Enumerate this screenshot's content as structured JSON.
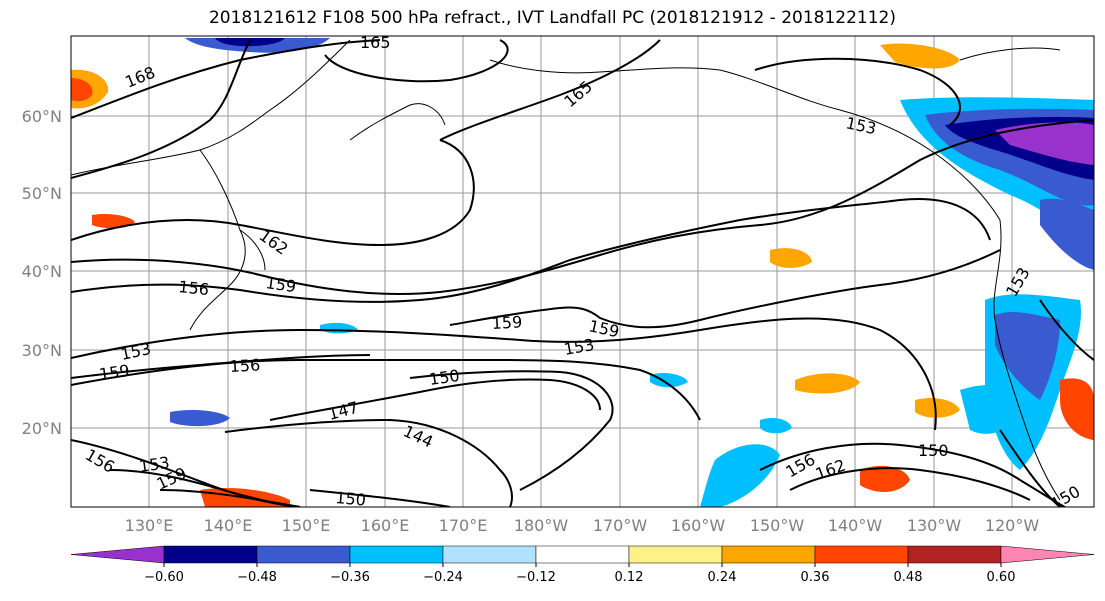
{
  "title": "2018121612 F108 500 hPa refract., IVT Landfall PC (2018121912 - 2018122112)",
  "map": {
    "lat_labels": [
      "60°N",
      "50°N",
      "40°N",
      "30°N",
      "20°N"
    ],
    "lon_labels": [
      "130°E",
      "140°E",
      "150°E",
      "160°E",
      "170°E",
      "180°W",
      "170°W",
      "160°W",
      "150°W",
      "140°W",
      "130°W",
      "120°W"
    ],
    "contour_labels": [
      {
        "text": "165",
        "id": "c165-top"
      },
      {
        "text": "168",
        "id": "c168"
      },
      {
        "text": "165",
        "id": "c165-mid"
      },
      {
        "text": "153",
        "id": "c153-ne"
      },
      {
        "text": "162",
        "id": "c162-w"
      },
      {
        "text": "159",
        "id": "c159-w"
      },
      {
        "text": "156",
        "id": "c156-w"
      },
      {
        "text": "159",
        "id": "c159-c"
      },
      {
        "text": "159",
        "id": "c159-c2"
      },
      {
        "text": "153",
        "id": "c153-w"
      },
      {
        "text": "153",
        "id": "c153-c"
      },
      {
        "text": "159",
        "id": "c159-sw"
      },
      {
        "text": "156",
        "id": "c156-c"
      },
      {
        "text": "150",
        "id": "c150-c"
      },
      {
        "text": "147",
        "id": "c147"
      },
      {
        "text": "144",
        "id": "c144"
      },
      {
        "text": "153",
        "id": "c153-e"
      },
      {
        "text": "150",
        "id": "c150-e"
      },
      {
        "text": "156",
        "id": "c156-se"
      },
      {
        "text": "162",
        "id": "c162-se"
      },
      {
        "text": "156",
        "id": "c156-sw"
      },
      {
        "text": "153",
        "id": "c153-sw"
      },
      {
        "text": "159",
        "id": "c159-sw2"
      },
      {
        "text": "150",
        "id": "c150-s"
      },
      {
        "text": "150",
        "id": "c150-se"
      }
    ]
  },
  "colorbar": {
    "ticks": [
      "−0.60",
      "−0.48",
      "−0.36",
      "−0.24",
      "−0.12",
      "0.12",
      "0.24",
      "0.36",
      "0.48",
      "0.60"
    ],
    "colors": [
      "#9932cc",
      "#00008b",
      "#3a5bd0",
      "#00bfff",
      "#b0e2ff",
      "#ffffff",
      "#fff08a",
      "#ffa500",
      "#ff4500",
      "#b22222",
      "#ff85b3"
    ],
    "extend": "both"
  }
}
